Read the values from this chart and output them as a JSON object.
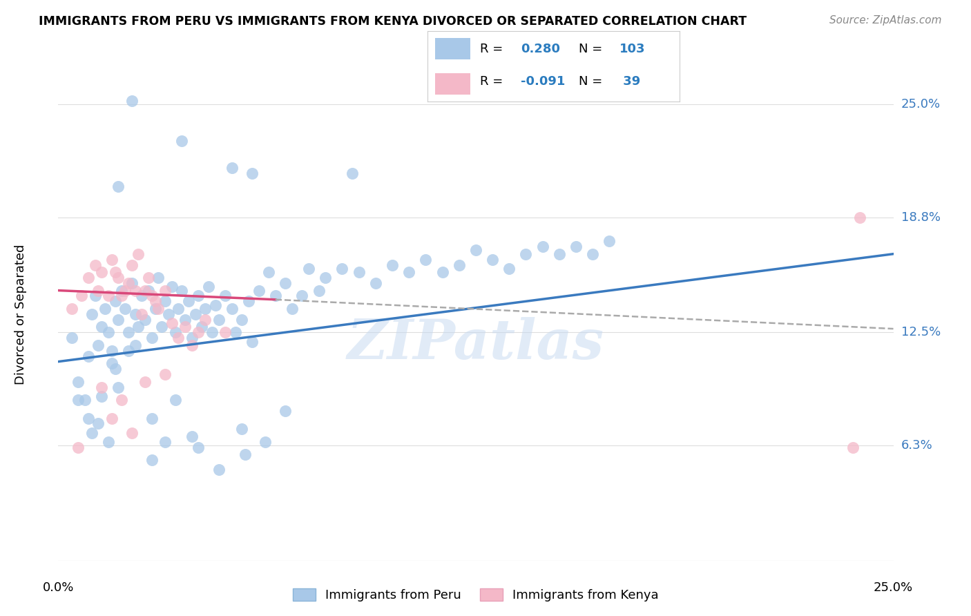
{
  "title": "IMMIGRANTS FROM PERU VS IMMIGRANTS FROM KENYA DIVORCED OR SEPARATED CORRELATION CHART",
  "source": "Source: ZipAtlas.com",
  "ylabel": "Divorced or Separated",
  "color_peru": "#a8c8e8",
  "color_kenya": "#f4b8c8",
  "trend_color_peru": "#3a7abf",
  "trend_color_kenya": "#d9487a",
  "trend_color_dashed": "#aaaaaa",
  "watermark": "ZIPatlas",
  "xlim": [
    0.0,
    0.25
  ],
  "ylim": [
    0.0,
    0.27
  ],
  "y_ticks": [
    0.063,
    0.125,
    0.188,
    0.25
  ],
  "y_tick_labels": [
    "6.3%",
    "12.5%",
    "18.8%",
    "25.0%"
  ],
  "x_ticks": [
    0.0,
    0.05,
    0.1,
    0.15,
    0.2,
    0.25
  ],
  "peru_line": [
    0.0,
    0.109,
    0.25,
    0.168
  ],
  "kenya_line_solid": [
    0.0,
    0.148,
    0.065,
    0.143
  ],
  "kenya_line_dashed": [
    0.065,
    0.143,
    0.25,
    0.127
  ],
  "peru_points": [
    [
      0.004,
      0.122
    ],
    [
      0.006,
      0.098
    ],
    [
      0.008,
      0.088
    ],
    [
      0.009,
      0.112
    ],
    [
      0.01,
      0.135
    ],
    [
      0.011,
      0.145
    ],
    [
      0.012,
      0.118
    ],
    [
      0.013,
      0.128
    ],
    [
      0.014,
      0.138
    ],
    [
      0.015,
      0.125
    ],
    [
      0.016,
      0.115
    ],
    [
      0.017,
      0.142
    ],
    [
      0.018,
      0.132
    ],
    [
      0.019,
      0.148
    ],
    [
      0.02,
      0.138
    ],
    [
      0.021,
      0.125
    ],
    [
      0.022,
      0.152
    ],
    [
      0.023,
      0.135
    ],
    [
      0.024,
      0.128
    ],
    [
      0.025,
      0.145
    ],
    [
      0.026,
      0.132
    ],
    [
      0.027,
      0.148
    ],
    [
      0.028,
      0.122
    ],
    [
      0.029,
      0.138
    ],
    [
      0.03,
      0.155
    ],
    [
      0.031,
      0.128
    ],
    [
      0.032,
      0.142
    ],
    [
      0.033,
      0.135
    ],
    [
      0.034,
      0.15
    ],
    [
      0.035,
      0.125
    ],
    [
      0.036,
      0.138
    ],
    [
      0.037,
      0.148
    ],
    [
      0.038,
      0.132
    ],
    [
      0.039,
      0.142
    ],
    [
      0.04,
      0.122
    ],
    [
      0.041,
      0.135
    ],
    [
      0.042,
      0.145
    ],
    [
      0.043,
      0.128
    ],
    [
      0.044,
      0.138
    ],
    [
      0.045,
      0.15
    ],
    [
      0.046,
      0.125
    ],
    [
      0.047,
      0.14
    ],
    [
      0.048,
      0.132
    ],
    [
      0.05,
      0.145
    ],
    [
      0.052,
      0.138
    ],
    [
      0.053,
      0.125
    ],
    [
      0.055,
      0.132
    ],
    [
      0.057,
      0.142
    ],
    [
      0.058,
      0.12
    ],
    [
      0.06,
      0.148
    ],
    [
      0.063,
      0.158
    ],
    [
      0.065,
      0.145
    ],
    [
      0.068,
      0.152
    ],
    [
      0.07,
      0.138
    ],
    [
      0.073,
      0.145
    ],
    [
      0.075,
      0.16
    ],
    [
      0.078,
      0.148
    ],
    [
      0.08,
      0.155
    ],
    [
      0.085,
      0.16
    ],
    [
      0.09,
      0.158
    ],
    [
      0.095,
      0.152
    ],
    [
      0.1,
      0.162
    ],
    [
      0.105,
      0.158
    ],
    [
      0.11,
      0.165
    ],
    [
      0.115,
      0.158
    ],
    [
      0.12,
      0.162
    ],
    [
      0.125,
      0.17
    ],
    [
      0.13,
      0.165
    ],
    [
      0.135,
      0.16
    ],
    [
      0.14,
      0.168
    ],
    [
      0.145,
      0.172
    ],
    [
      0.15,
      0.168
    ],
    [
      0.155,
      0.172
    ],
    [
      0.16,
      0.168
    ],
    [
      0.165,
      0.175
    ],
    [
      0.022,
      0.252
    ],
    [
      0.037,
      0.23
    ],
    [
      0.052,
      0.215
    ],
    [
      0.018,
      0.205
    ],
    [
      0.058,
      0.212
    ],
    [
      0.088,
      0.212
    ],
    [
      0.035,
      0.088
    ],
    [
      0.068,
      0.082
    ],
    [
      0.028,
      0.078
    ],
    [
      0.042,
      0.062
    ],
    [
      0.056,
      0.058
    ],
    [
      0.032,
      0.065
    ],
    [
      0.028,
      0.055
    ],
    [
      0.062,
      0.065
    ],
    [
      0.048,
      0.05
    ],
    [
      0.016,
      0.108
    ],
    [
      0.006,
      0.088
    ],
    [
      0.012,
      0.075
    ],
    [
      0.018,
      0.095
    ],
    [
      0.023,
      0.118
    ],
    [
      0.013,
      0.09
    ],
    [
      0.009,
      0.078
    ],
    [
      0.017,
      0.105
    ],
    [
      0.021,
      0.115
    ],
    [
      0.01,
      0.07
    ],
    [
      0.015,
      0.065
    ],
    [
      0.04,
      0.068
    ],
    [
      0.055,
      0.072
    ]
  ],
  "kenya_points": [
    [
      0.004,
      0.138
    ],
    [
      0.007,
      0.145
    ],
    [
      0.009,
      0.155
    ],
    [
      0.011,
      0.162
    ],
    [
      0.012,
      0.148
    ],
    [
      0.013,
      0.158
    ],
    [
      0.015,
      0.145
    ],
    [
      0.016,
      0.165
    ],
    [
      0.017,
      0.158
    ],
    [
      0.018,
      0.155
    ],
    [
      0.019,
      0.145
    ],
    [
      0.02,
      0.148
    ],
    [
      0.021,
      0.152
    ],
    [
      0.022,
      0.162
    ],
    [
      0.023,
      0.148
    ],
    [
      0.024,
      0.168
    ],
    [
      0.025,
      0.135
    ],
    [
      0.026,
      0.148
    ],
    [
      0.027,
      0.155
    ],
    [
      0.028,
      0.145
    ],
    [
      0.029,
      0.142
    ],
    [
      0.03,
      0.138
    ],
    [
      0.032,
      0.148
    ],
    [
      0.034,
      0.13
    ],
    [
      0.036,
      0.122
    ],
    [
      0.038,
      0.128
    ],
    [
      0.04,
      0.118
    ],
    [
      0.042,
      0.125
    ],
    [
      0.044,
      0.132
    ],
    [
      0.05,
      0.125
    ],
    [
      0.006,
      0.062
    ],
    [
      0.016,
      0.078
    ],
    [
      0.022,
      0.07
    ],
    [
      0.026,
      0.098
    ],
    [
      0.032,
      0.102
    ],
    [
      0.013,
      0.095
    ],
    [
      0.019,
      0.088
    ],
    [
      0.24,
      0.188
    ],
    [
      0.238,
      0.062
    ]
  ]
}
